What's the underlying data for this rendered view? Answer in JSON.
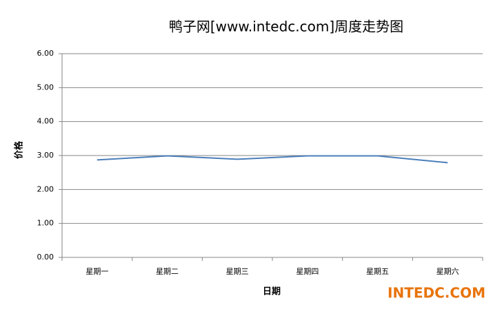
{
  "chart_data": {
    "type": "line",
    "title": "鸭子网[www.intedc.com]周度走势图",
    "x_label": "日期",
    "y_label": "价格",
    "categories": [
      "星期一",
      "星期二",
      "星期三",
      "星期四",
      "星期五",
      "星期六"
    ],
    "series": [
      {
        "name": "价格",
        "color": "#4a7ebb",
        "values": [
          2.87,
          2.99,
          2.89,
          2.99,
          2.99,
          2.79
        ]
      }
    ],
    "ylim": [
      0,
      6
    ],
    "yticks": [
      {
        "value": 0,
        "label": "0.00"
      },
      {
        "value": 1,
        "label": "1.00"
      },
      {
        "value": 2,
        "label": "2.00"
      },
      {
        "value": 3,
        "label": "3.00"
      },
      {
        "value": 4,
        "label": "4.00"
      },
      {
        "value": 5,
        "label": "5.00"
      },
      {
        "value": 6,
        "label": "6.00"
      }
    ],
    "grid": true,
    "annotation": "INTEDC.COM"
  }
}
